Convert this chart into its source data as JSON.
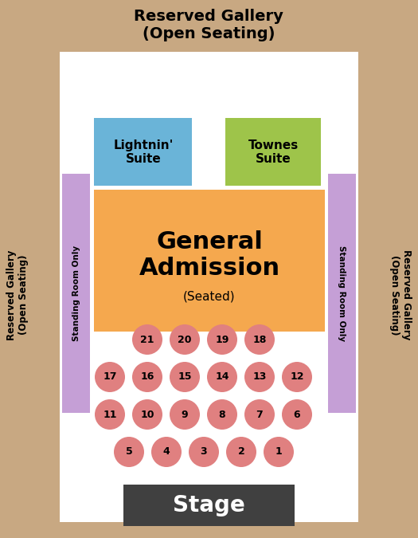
{
  "bg_outer": "#c8a882",
  "bg_inner": "#ffffff",
  "stage_color": "#404040",
  "stage_text_color": "#ffffff",
  "ga_color": "#f5a84e",
  "lightnin_color": "#6ab4d8",
  "townes_color": "#9ec44a",
  "standing_color": "#c59fd6",
  "seat_color": "#e08080",
  "seat_text_color": "#000000",
  "title_top": "Reserved Gallery\n(Open Seating)",
  "label_left": "Reserved Gallery\n(Open Seating)",
  "label_right": "Reserved Gallery\n(Open Seating)",
  "standing_left": "Standing Room Only",
  "standing_right": "Standing Room Only",
  "ga_label": "General\nAdmission",
  "ga_sublabel": "(Seated)",
  "lightnin_label": "Lightnin'\nSuite",
  "townes_label": "Townes\nSuite",
  "stage_label": "Stage",
  "seats_row1": [
    21,
    20,
    19,
    18
  ],
  "seats_row2": [
    17,
    16,
    15,
    14,
    13,
    12
  ],
  "seats_row3": [
    11,
    10,
    9,
    8,
    7,
    6
  ],
  "seats_row4": [
    5,
    4,
    3,
    2,
    1
  ],
  "fig_width": 5.25,
  "fig_height": 6.75,
  "dpi": 100
}
